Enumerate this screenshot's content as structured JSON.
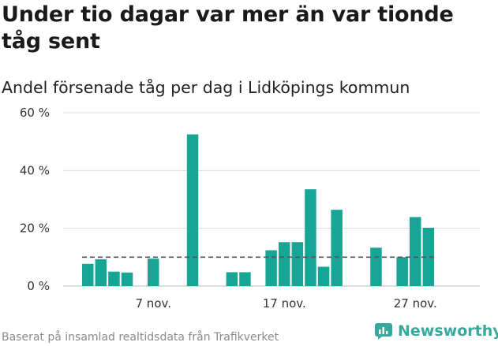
{
  "title": "Under tio dagar var mer än var tionde tåg sent",
  "subtitle": "Andel försenade tåg per dag i Lidköpings kommun",
  "footer": "Baserat på insamlad realtidsdata från Trafikverket",
  "brand": "Newsworthy",
  "colors": {
    "bar": "#17a596",
    "grid": "#dddddd",
    "reference": "#555555",
    "brand": "#38a99c"
  },
  "chart_data": {
    "type": "bar",
    "x_unit": "day",
    "x": [
      "2022-11-02",
      "2022-11-03",
      "2022-11-04",
      "2022-11-05",
      "2022-11-06",
      "2022-11-07",
      "2022-11-08",
      "2022-11-09",
      "2022-11-10",
      "2022-11-11",
      "2022-11-12",
      "2022-11-13",
      "2022-11-14",
      "2022-11-15",
      "2022-11-16",
      "2022-11-17",
      "2022-11-18",
      "2022-11-19",
      "2022-11-20",
      "2022-11-21",
      "2022-11-22",
      "2022-11-23",
      "2022-11-24",
      "2022-11-25",
      "2022-11-26",
      "2022-11-27",
      "2022-11-28",
      "2022-11-29"
    ],
    "values": [
      7.7,
      9.3,
      5.0,
      4.7,
      null,
      9.5,
      null,
      null,
      52.5,
      null,
      null,
      4.8,
      4.8,
      null,
      12.4,
      15.2,
      15.2,
      33.5,
      6.7,
      26.4,
      null,
      null,
      13.3,
      null,
      10.0,
      23.9,
      20.2,
      null
    ],
    "reference_line": 10,
    "ylim": [
      0,
      60
    ],
    "yticks": [
      0,
      20,
      40,
      60
    ],
    "ytick_labels": [
      "0 %",
      "20 %",
      "40 %",
      "60 %"
    ],
    "xticks": [
      "2022-11-07",
      "2022-11-17",
      "2022-11-27"
    ],
    "xtick_labels": [
      "7 nov.",
      "17 nov.",
      "27 nov."
    ],
    "grid": true
  }
}
